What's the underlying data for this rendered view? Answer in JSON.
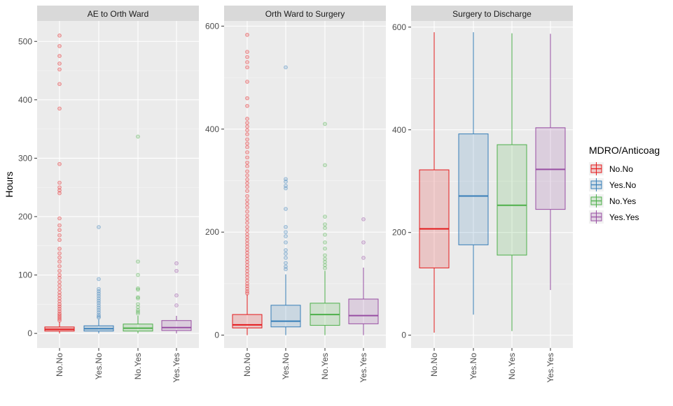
{
  "chart_data": {
    "type": "box",
    "ylabel": "Hours",
    "xlabel": "",
    "categories": [
      "No.No",
      "Yes.No",
      "No.Yes",
      "Yes.Yes"
    ],
    "legend": {
      "title": "MDRO/Anticoag",
      "position": "right",
      "entries": [
        "No.No",
        "Yes.No",
        "No.Yes",
        "Yes.Yes"
      ]
    },
    "colors": {
      "No.No": "#E41A1C",
      "Yes.No": "#377EB8",
      "No.Yes": "#4DAF4A",
      "Yes.Yes": "#984EA3",
      "panel_bg": "#EBEBEB",
      "strip_bg": "#D9D9D9",
      "grid": "#FFFFFF"
    },
    "grid": true,
    "facets": [
      {
        "title": "AE to Orth Ward",
        "ylim": [
          -25,
          535
        ],
        "yticks": [
          0,
          100,
          200,
          300,
          400,
          500
        ],
        "boxes": [
          {
            "group": "No.No",
            "min": 0,
            "q1": 4,
            "median": 7,
            "q3": 11,
            "max": 20,
            "outliers": [
              510,
              492,
              475,
              462,
              452,
              427,
              385,
              290,
              258,
              250,
              245,
              240,
              197,
              185,
              177,
              168,
              160,
              145,
              137,
              130,
              123,
              115,
              107,
              100,
              95,
              88,
              82,
              76,
              70,
              65,
              60,
              55,
              50,
              46,
              42,
              38,
              34,
              31,
              28,
              25,
              22
            ]
          },
          {
            "group": "Yes.No",
            "min": 0,
            "q1": 4,
            "median": 8,
            "q3": 13,
            "max": 24,
            "outliers": [
              182,
              93,
              76,
              72,
              68,
              64,
              60,
              56,
              52,
              48,
              44,
              40,
              36,
              32,
              29,
              27
            ]
          },
          {
            "group": "No.Yes",
            "min": 0,
            "q1": 4,
            "median": 9,
            "q3": 16,
            "max": 30,
            "outliers": [
              337,
              123,
              100,
              77,
              75,
              62,
              60,
              50,
              45,
              40,
              37,
              34
            ]
          },
          {
            "group": "Yes.Yes",
            "min": 0,
            "q1": 5,
            "median": 10,
            "q3": 22,
            "max": 30,
            "outliers": [
              120,
              107,
              65,
              48
            ]
          }
        ]
      },
      {
        "title": "Orth Ward to Surgery",
        "ylim": [
          -25,
          610
        ],
        "yticks": [
          0,
          200,
          400,
          600
        ],
        "boxes": [
          {
            "group": "No.No",
            "min": 0,
            "q1": 14,
            "median": 20,
            "q3": 40,
            "max": 79,
            "outliers": [
              583,
              550,
              540,
              530,
              520,
              492,
              460,
              445,
              420,
              412,
              405,
              398,
              390,
              380,
              372,
              365,
              355,
              345,
              335,
              328,
              318,
              310,
              302,
              295,
              288,
              280,
              270,
              262,
              255,
              248,
              240,
              232,
              225,
              218,
              210,
              203,
              196,
              190,
              184,
              178,
              172,
              166,
              160,
              154,
              148,
              142,
              136,
              130,
              124,
              118,
              112,
              106,
              100,
              95,
              90,
              85,
              81
            ]
          },
          {
            "group": "Yes.No",
            "min": 0,
            "q1": 16,
            "median": 27,
            "q3": 58,
            "max": 118,
            "outliers": [
              520,
              303,
              298,
              290,
              285,
              245,
              210,
              200,
              192,
              180,
              165,
              158,
              150,
              140,
              133,
              128
            ]
          },
          {
            "group": "No.Yes",
            "min": 0,
            "q1": 19,
            "median": 40,
            "q3": 62,
            "max": 125,
            "outliers": [
              410,
              330,
              230,
              215,
              208,
              195,
              180,
              168,
              155,
              148,
              142,
              136,
              130
            ]
          },
          {
            "group": "Yes.Yes",
            "min": 0,
            "q1": 22,
            "median": 38,
            "q3": 70,
            "max": 131,
            "outliers": [
              225,
              180,
              150
            ]
          }
        ]
      },
      {
        "title": "Surgery to Discharge",
        "ylim": [
          -25,
          612
        ],
        "yticks": [
          0,
          200,
          400,
          600
        ],
        "boxes": [
          {
            "group": "No.No",
            "min": 5,
            "q1": 131,
            "median": 207,
            "q3": 322,
            "max": 590,
            "outliers": []
          },
          {
            "group": "Yes.No",
            "min": 40,
            "q1": 176,
            "median": 271,
            "q3": 392,
            "max": 590,
            "outliers": []
          },
          {
            "group": "No.Yes",
            "min": 8,
            "q1": 156,
            "median": 253,
            "q3": 371,
            "max": 588,
            "outliers": []
          },
          {
            "group": "Yes.Yes",
            "min": 88,
            "q1": 245,
            "median": 323,
            "q3": 404,
            "max": 587,
            "outliers": []
          }
        ]
      }
    ]
  }
}
